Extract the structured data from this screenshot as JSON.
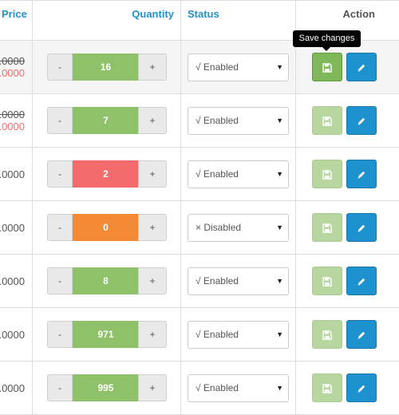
{
  "header": {
    "price": "Price",
    "quantity": "Quantity",
    "status": "Status",
    "action": "Action"
  },
  "tooltip": "Save changes",
  "controls": {
    "minus": "-",
    "plus": "+"
  },
  "colors": {
    "green": "#8fc06a",
    "red": "#f56b6b",
    "orange": "#f48a35",
    "edit_blue": "#1e91cf"
  },
  "rows": [
    {
      "price_old": ".0000",
      "price_special": ".0000",
      "quantity": "16",
      "qty_color": "green",
      "status": "√ Enabled"
    },
    {
      "price_old": ".0000",
      "price_special": ".0000",
      "quantity": "7",
      "qty_color": "green",
      "status": "√ Enabled"
    },
    {
      "price": ".0000",
      "quantity": "2",
      "qty_color": "red",
      "status": "√ Enabled"
    },
    {
      "price": ".0000",
      "quantity": "0",
      "qty_color": "orange",
      "status": "× Disabled"
    },
    {
      "price": ".0000",
      "quantity": "8",
      "qty_color": "green",
      "status": "√ Enabled"
    },
    {
      "price": ".0000",
      "quantity": "971",
      "qty_color": "green",
      "status": "√ Enabled"
    },
    {
      "price": ".0000",
      "quantity": "995",
      "qty_color": "green",
      "status": "√ Enabled"
    }
  ]
}
